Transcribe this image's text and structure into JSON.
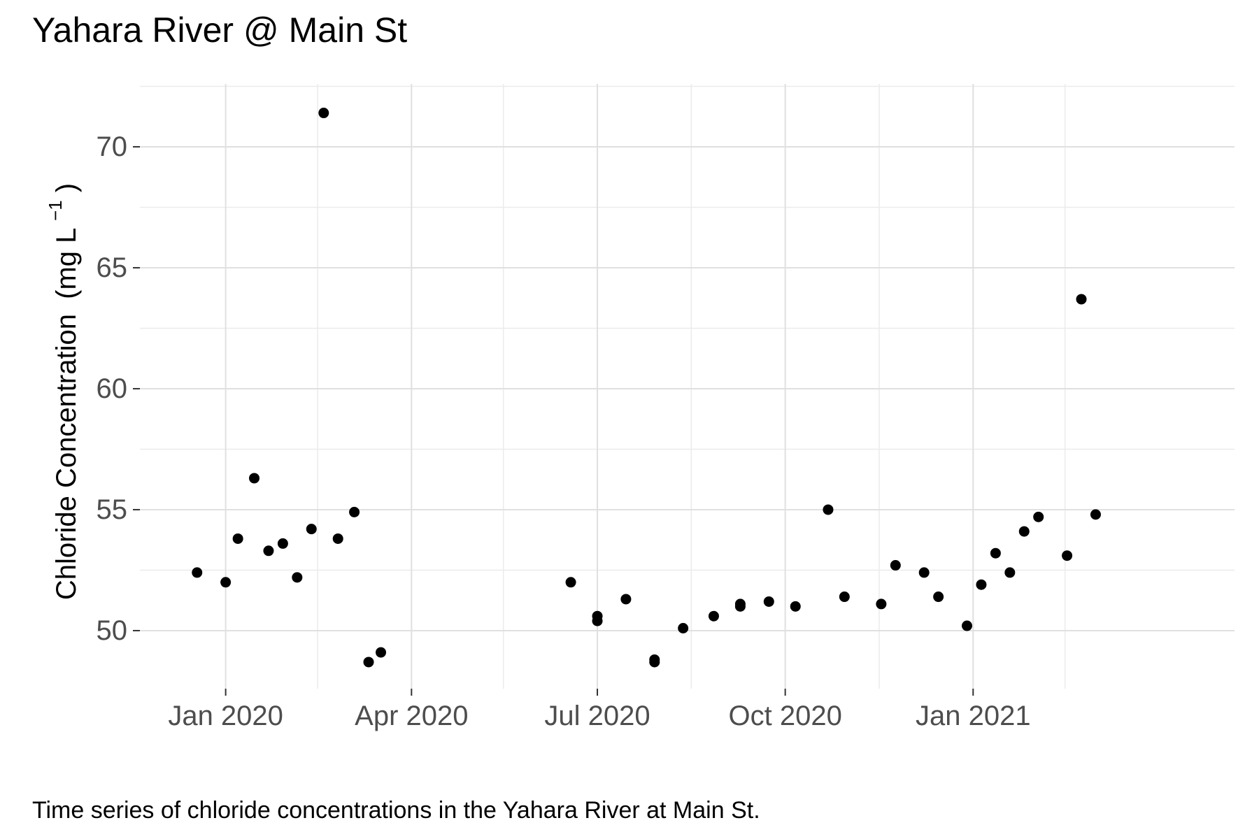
{
  "chart_data": {
    "type": "scatter",
    "title": "Yahara River @ Main St",
    "caption": "Time series of chloride concentrations in the Yahara River at Main St.",
    "ylabel": "Chloride Concentration",
    "ylabel_unit_prefix": "(mg L",
    "ylabel_unit_exponent": "−1",
    "ylabel_unit_suffix": ")",
    "xlabel": "",
    "x_type": "date",
    "xlim": [
      "2019-11-20",
      "2021-05-09"
    ],
    "ylim": [
      47.6,
      72.6
    ],
    "y_ticks": [
      50,
      55,
      60,
      65,
      70
    ],
    "x_ticks": [
      {
        "date": "2020-01-01",
        "label": "Jan 2020"
      },
      {
        "date": "2020-04-01",
        "label": "Apr 2020"
      },
      {
        "date": "2020-07-01",
        "label": "Jul 2020"
      },
      {
        "date": "2020-10-01",
        "label": "Oct 2020"
      },
      {
        "date": "2021-01-01",
        "label": "Jan 2021"
      }
    ],
    "x_minor_gridlines": [
      "2020-02-15",
      "2020-05-16",
      "2020-08-16",
      "2020-11-16",
      "2021-02-15"
    ],
    "grid": true,
    "legend": "none",
    "point_color": "#000000",
    "series": [
      {
        "points": [
          {
            "x": "2019-12-18",
            "y": 52.4
          },
          {
            "x": "2020-01-01",
            "y": 52.0
          },
          {
            "x": "2020-01-07",
            "y": 53.8
          },
          {
            "x": "2020-01-15",
            "y": 56.3
          },
          {
            "x": "2020-01-22",
            "y": 53.3
          },
          {
            "x": "2020-01-29",
            "y": 53.6
          },
          {
            "x": "2020-02-05",
            "y": 52.2
          },
          {
            "x": "2020-02-12",
            "y": 54.2
          },
          {
            "x": "2020-02-18",
            "y": 71.4
          },
          {
            "x": "2020-02-25",
            "y": 53.8
          },
          {
            "x": "2020-03-04",
            "y": 54.9
          },
          {
            "x": "2020-03-11",
            "y": 48.7
          },
          {
            "x": "2020-03-17",
            "y": 49.1
          },
          {
            "x": "2020-06-18",
            "y": 52.0
          },
          {
            "x": "2020-07-01",
            "y": 50.6
          },
          {
            "x": "2020-07-01",
            "y": 50.4
          },
          {
            "x": "2020-07-15",
            "y": 51.3
          },
          {
            "x": "2020-07-29",
            "y": 48.8
          },
          {
            "x": "2020-07-29",
            "y": 48.7
          },
          {
            "x": "2020-08-12",
            "y": 50.1
          },
          {
            "x": "2020-08-27",
            "y": 50.6
          },
          {
            "x": "2020-09-09",
            "y": 51.1
          },
          {
            "x": "2020-09-09",
            "y": 51.0
          },
          {
            "x": "2020-09-23",
            "y": 51.2
          },
          {
            "x": "2020-10-06",
            "y": 51.0
          },
          {
            "x": "2020-10-22",
            "y": 55.0
          },
          {
            "x": "2020-10-30",
            "y": 51.4
          },
          {
            "x": "2020-11-17",
            "y": 51.1
          },
          {
            "x": "2020-11-24",
            "y": 52.7
          },
          {
            "x": "2020-12-08",
            "y": 52.4
          },
          {
            "x": "2020-12-15",
            "y": 51.4
          },
          {
            "x": "2020-12-29",
            "y": 50.2
          },
          {
            "x": "2021-01-05",
            "y": 51.9
          },
          {
            "x": "2021-01-12",
            "y": 53.2
          },
          {
            "x": "2021-01-19",
            "y": 52.4
          },
          {
            "x": "2021-01-26",
            "y": 54.1
          },
          {
            "x": "2021-02-02",
            "y": 54.7
          },
          {
            "x": "2021-02-16",
            "y": 53.1
          },
          {
            "x": "2021-02-23",
            "y": 63.7
          },
          {
            "x": "2021-03-02",
            "y": 54.8
          }
        ]
      }
    ]
  }
}
